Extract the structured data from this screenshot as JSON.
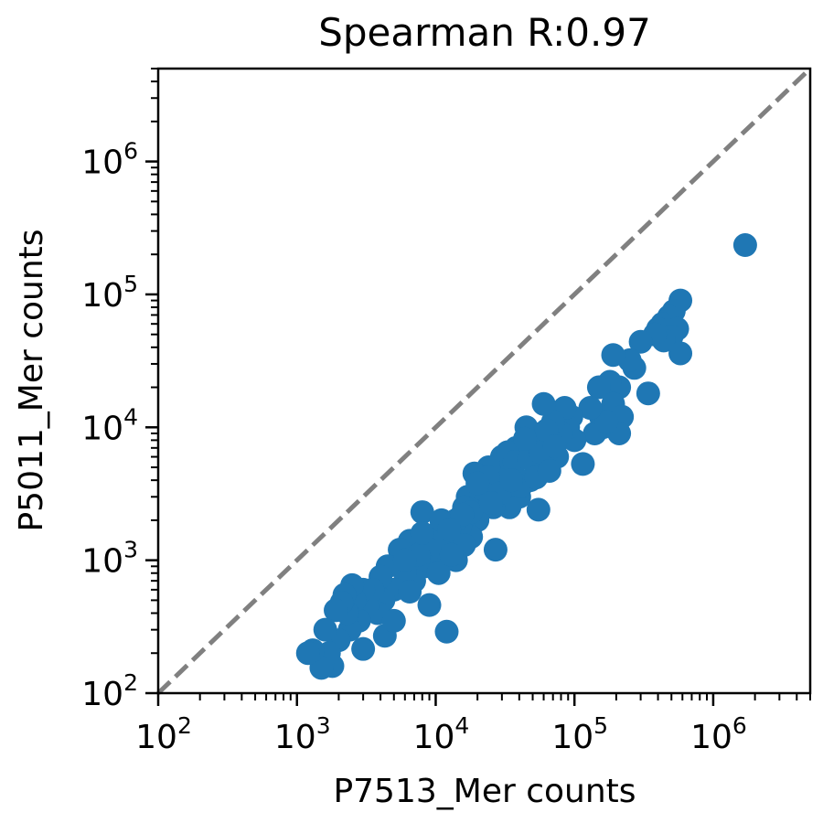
{
  "chart_data": {
    "type": "scatter",
    "title": "Spearman R:0.97",
    "xlabel": "P7513_Mer counts",
    "ylabel": "P5011_Mer counts",
    "xscale": "log",
    "yscale": "log",
    "xlim": [
      100,
      5000000
    ],
    "ylim": [
      100,
      5000000
    ],
    "xticks": [
      {
        "value": 100,
        "base": "10",
        "exp": "2"
      },
      {
        "value": 1000,
        "base": "10",
        "exp": "3"
      },
      {
        "value": 10000,
        "base": "10",
        "exp": "4"
      },
      {
        "value": 100000,
        "base": "10",
        "exp": "5"
      },
      {
        "value": 1000000,
        "base": "10",
        "exp": "6"
      }
    ],
    "yticks": [
      {
        "value": 100,
        "base": "10",
        "exp": "2"
      },
      {
        "value": 1000,
        "base": "10",
        "exp": "3"
      },
      {
        "value": 10000,
        "base": "10",
        "exp": "4"
      },
      {
        "value": 100000,
        "base": "10",
        "exp": "5"
      },
      {
        "value": 1000000,
        "base": "10",
        "exp": "6"
      }
    ],
    "grid": false,
    "legend": "none",
    "reference_line": {
      "type": "y=x",
      "style": "dashed",
      "color": "#808080"
    },
    "marker_color": "#1f77b4",
    "series": [
      {
        "points": [
          [
            1700000,
            235000
          ],
          [
            580000,
            90000
          ],
          [
            520000,
            75000
          ],
          [
            480000,
            68000
          ],
          [
            430000,
            60000
          ],
          [
            400000,
            55000
          ],
          [
            550000,
            55000
          ],
          [
            500000,
            48000
          ],
          [
            440000,
            45000
          ],
          [
            380000,
            50000
          ],
          [
            580000,
            36000
          ],
          [
            300000,
            44000
          ],
          [
            340000,
            18000
          ],
          [
            270000,
            28000
          ],
          [
            250000,
            32000
          ],
          [
            190000,
            35000
          ],
          [
            210000,
            20000
          ],
          [
            180000,
            22000
          ],
          [
            150000,
            20000
          ],
          [
            190000,
            15000
          ],
          [
            220000,
            12000
          ],
          [
            210000,
            9000
          ],
          [
            160000,
            10000
          ],
          [
            155000,
            12000
          ],
          [
            140000,
            9000
          ],
          [
            170000,
            11000
          ],
          [
            130000,
            14000
          ],
          [
            115000,
            5300
          ],
          [
            100000,
            8000
          ],
          [
            95000,
            12000
          ],
          [
            90000,
            10000
          ],
          [
            85000,
            14000
          ],
          [
            80000,
            9000
          ],
          [
            75000,
            6000
          ],
          [
            70000,
            11000
          ],
          [
            65000,
            8000
          ],
          [
            60000,
            15000
          ],
          [
            58000,
            5000
          ],
          [
            55000,
            2400
          ],
          [
            52000,
            7000
          ],
          [
            50000,
            9000
          ],
          [
            48000,
            4000
          ],
          [
            45000,
            10000
          ],
          [
            42000,
            6000
          ],
          [
            40000,
            3000
          ],
          [
            38000,
            7000
          ],
          [
            36000,
            5000
          ],
          [
            34000,
            2500
          ],
          [
            32000,
            4500
          ],
          [
            30000,
            6000
          ],
          [
            28000,
            3500
          ],
          [
            26000,
            2500
          ],
          [
            24000,
            5000
          ],
          [
            22000,
            3000
          ],
          [
            20000,
            2000
          ],
          [
            19000,
            4500
          ],
          [
            18000,
            1500
          ],
          [
            17000,
            3000
          ],
          [
            16000,
            2500
          ],
          [
            15000,
            1800
          ],
          [
            14000,
            2000
          ],
          [
            13000,
            1500
          ],
          [
            12000,
            290
          ],
          [
            11500,
            1200
          ],
          [
            11000,
            1800
          ],
          [
            10000,
            1500
          ],
          [
            9500,
            1000
          ],
          [
            9000,
            1200
          ],
          [
            8500,
            900
          ],
          [
            8000,
            2300
          ],
          [
            7500,
            1000
          ],
          [
            7000,
            700
          ],
          [
            6500,
            1400
          ],
          [
            6000,
            800
          ],
          [
            5500,
            1200
          ],
          [
            5000,
            600
          ],
          [
            4500,
            900
          ],
          [
            4200,
            500
          ],
          [
            4000,
            750
          ],
          [
            3800,
            400
          ],
          [
            3500,
            600
          ],
          [
            3200,
            450
          ],
          [
            3000,
            600
          ],
          [
            2800,
            350
          ],
          [
            2600,
            500
          ],
          [
            2500,
            650
          ],
          [
            2400,
            300
          ],
          [
            2300,
            400
          ],
          [
            2200,
            550
          ],
          [
            2100,
            480
          ],
          [
            2000,
            250
          ],
          [
            1900,
            420
          ],
          [
            1800,
            160
          ],
          [
            1700,
            200
          ],
          [
            1600,
            300
          ],
          [
            1500,
            155
          ],
          [
            1300,
            210
          ],
          [
            1200,
            200
          ],
          [
            4300,
            270
          ],
          [
            3000,
            215
          ],
          [
            6500,
            580
          ],
          [
            27000,
            1200
          ],
          [
            16000,
            1300
          ],
          [
            9000,
            460
          ],
          [
            5000,
            350
          ],
          [
            7500,
            1100
          ],
          [
            11000,
            2000
          ],
          [
            14000,
            1000
          ],
          [
            8000,
            1600
          ],
          [
            6000,
            1000
          ],
          [
            10500,
            800
          ],
          [
            13000,
            1100
          ],
          [
            18000,
            2300
          ],
          [
            21000,
            3500
          ],
          [
            24000,
            4200
          ],
          [
            29000,
            3200
          ],
          [
            33000,
            6500
          ],
          [
            37000,
            5500
          ],
          [
            41000,
            3600
          ],
          [
            47000,
            5800
          ],
          [
            53000,
            4200
          ],
          [
            57000,
            6500
          ],
          [
            63000,
            9500
          ],
          [
            72000,
            7200
          ],
          [
            66000,
            4700
          ],
          [
            44000,
            8200
          ],
          [
            35000,
            4000
          ],
          [
            25000,
            2700
          ],
          [
            20000,
            3800
          ],
          [
            15500,
            2200
          ],
          [
            12500,
            1700
          ]
        ]
      }
    ]
  }
}
